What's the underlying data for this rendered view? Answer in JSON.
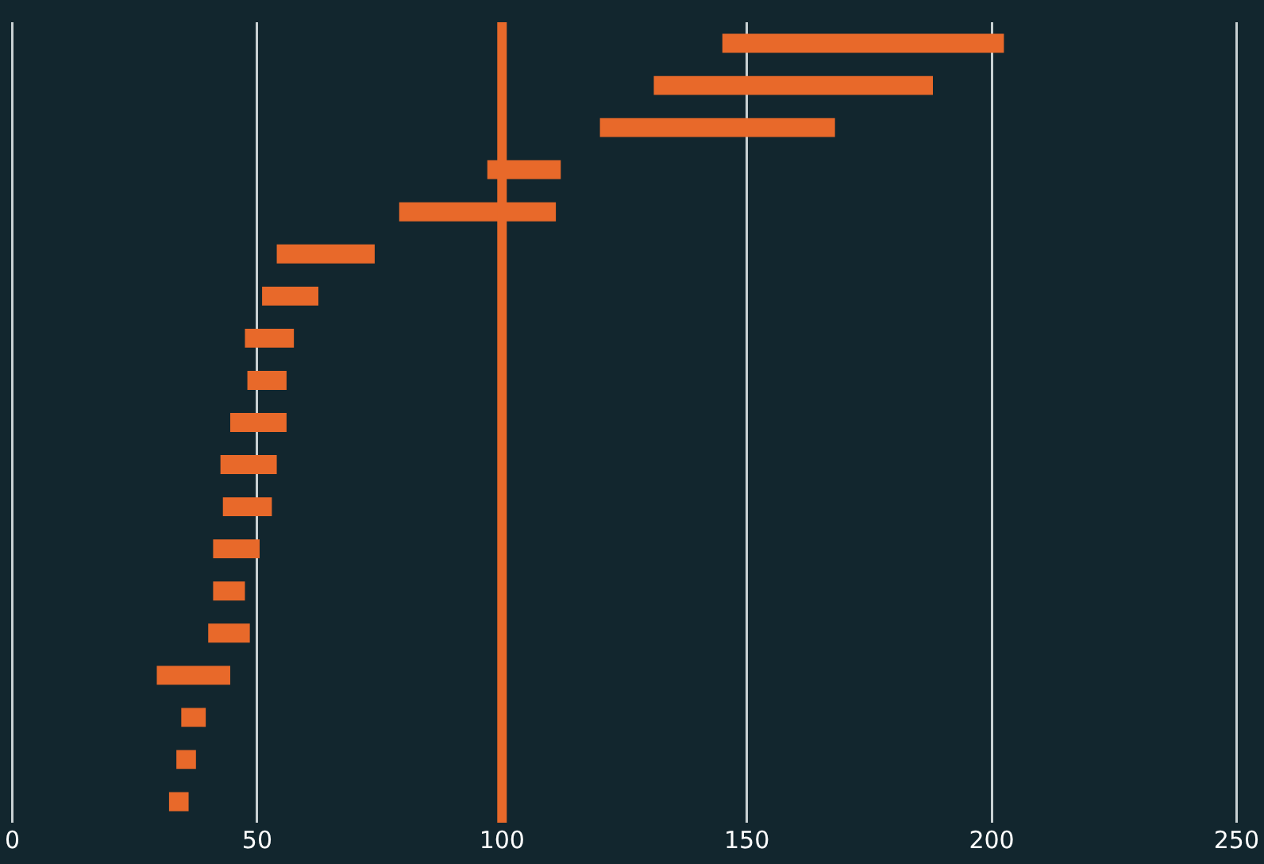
{
  "chart_data": {
    "type": "bar",
    "orientation": "horizontal",
    "categories": [
      null,
      null,
      null,
      null,
      null,
      null,
      null,
      null,
      null,
      null,
      null,
      null,
      null,
      null,
      null,
      null,
      null,
      null,
      null
    ],
    "base": [
      145,
      131,
      120,
      97,
      79,
      54,
      51,
      47.5,
      48,
      44.5,
      42.5,
      43,
      41,
      41,
      40,
      29.5,
      34.5,
      33.5,
      32
    ],
    "values": [
      57.5,
      57,
      48,
      15,
      32,
      20,
      11.5,
      10,
      8,
      11.5,
      11.5,
      10,
      9.5,
      6.5,
      8.5,
      15,
      5,
      4,
      4
    ],
    "color": "#e8692a",
    "xlim": [
      0,
      250
    ],
    "xticks": [
      0,
      50,
      100,
      150,
      200,
      250
    ],
    "grid": "x",
    "tick_labels": "x",
    "ref_lines": [
      {
        "axis": "x",
        "value": 100,
        "color": "#e8692a"
      }
    ]
  }
}
